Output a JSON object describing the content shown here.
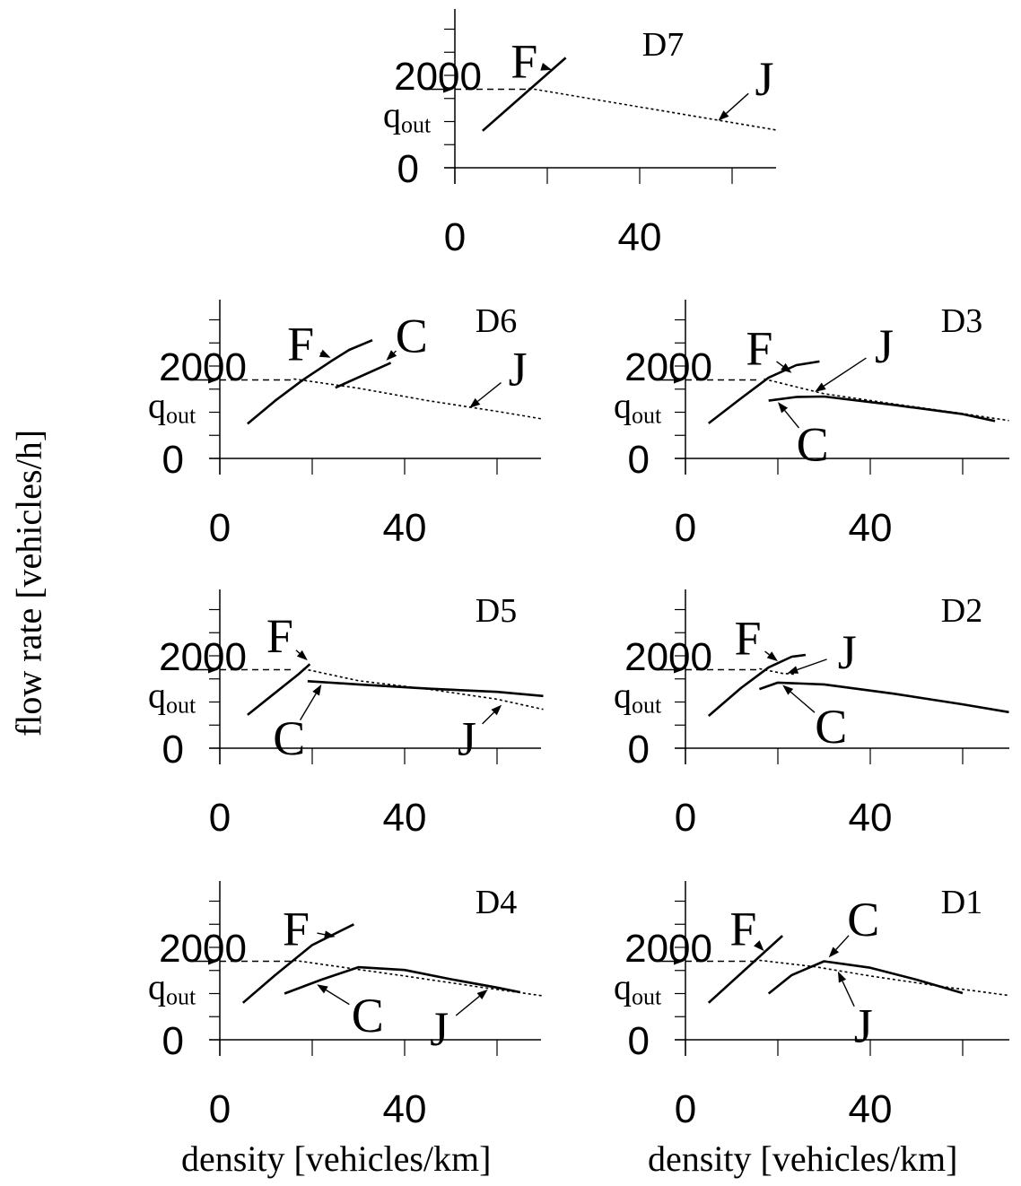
{
  "figure": {
    "ylabel": "flow rate [vehicles/h]",
    "xlabels": [
      "density [vehicles/km]",
      "density [vehicles/km]"
    ]
  },
  "chart_data": [
    {
      "type": "line",
      "title": "D7",
      "x_ticks": [
        "0",
        "40"
      ],
      "y_ticks": [
        "0",
        "2000"
      ],
      "xlim": [
        0,
        70
      ],
      "ylim": [
        0,
        3000
      ],
      "qout_label": "q",
      "qout_sub": "out",
      "qout": 1700,
      "series": [
        {
          "id": "F",
          "style": "solid",
          "points": [
            [
              6,
              800
            ],
            [
              24,
              2380
            ]
          ]
        },
        {
          "id": "J",
          "style": "dotted",
          "points": [
            [
              16,
              1720
            ],
            [
              70,
              810
            ]
          ]
        }
      ],
      "annotations": [
        {
          "label": "F",
          "x": 15,
          "y": 2300,
          "tx": 21,
          "ty": 2120
        },
        {
          "label": "J",
          "x": 67,
          "y": 1920,
          "tx": 57,
          "ty": 1020
        }
      ]
    },
    {
      "type": "line",
      "title": "D6",
      "x_ticks": [
        "0",
        "40"
      ],
      "y_ticks": [
        "0",
        "2000"
      ],
      "xlim": [
        0,
        70
      ],
      "ylim": [
        0,
        3000
      ],
      "qout_label": "q",
      "qout_sub": "out",
      "qout": 1700,
      "series": [
        {
          "id": "F",
          "style": "solid",
          "points": [
            [
              6,
              750
            ],
            [
              12,
              1250
            ],
            [
              18,
              1700
            ],
            [
              24,
              2100
            ],
            [
              28,
              2350
            ],
            [
              33,
              2560
            ]
          ]
        },
        {
          "id": "C",
          "style": "solid",
          "points": [
            [
              25,
              1530
            ],
            [
              37,
              2070
            ]
          ]
        },
        {
          "id": "J",
          "style": "dotted",
          "points": [
            [
              16,
              1720
            ],
            [
              30,
              1520
            ],
            [
              45,
              1250
            ],
            [
              60,
              1020
            ],
            [
              70,
              850
            ]
          ]
        }
      ],
      "annotations": [
        {
          "label": "F",
          "x": 17.5,
          "y": 2480,
          "tx": 24,
          "ty": 2180
        },
        {
          "label": "C",
          "x": 41.5,
          "y": 2650,
          "tx": 36,
          "ty": 2120
        },
        {
          "label": "J",
          "x": 64.5,
          "y": 1930,
          "tx": 54,
          "ty": 1090
        }
      ]
    },
    {
      "type": "line",
      "title": "D3",
      "x_ticks": [
        "0",
        "40"
      ],
      "y_ticks": [
        "0",
        "2000"
      ],
      "xlim": [
        0,
        70
      ],
      "ylim": [
        0,
        3000
      ],
      "qout_label": "q",
      "qout_sub": "out",
      "qout": 1700,
      "series": [
        {
          "id": "F",
          "style": "solid",
          "points": [
            [
              5,
              760
            ],
            [
              12,
              1300
            ],
            [
              18,
              1750
            ],
            [
              24,
              2020
            ],
            [
              29,
              2100
            ]
          ]
        },
        {
          "id": "C",
          "style": "solid",
          "points": [
            [
              18,
              1250
            ],
            [
              24,
              1330
            ],
            [
              30,
              1340
            ],
            [
              45,
              1160
            ],
            [
              60,
              960
            ],
            [
              67,
              810
            ]
          ]
        },
        {
          "id": "J",
          "style": "dotted",
          "points": [
            [
              17,
              1720
            ],
            [
              30,
              1400
            ],
            [
              45,
              1180
            ],
            [
              60,
              970
            ],
            [
              70,
              820
            ]
          ]
        }
      ],
      "annotations": [
        {
          "label": "F",
          "x": 16,
          "y": 2380,
          "tx": 23,
          "ty": 1850
        },
        {
          "label": "J",
          "x": 43,
          "y": 2430,
          "tx": 28,
          "ty": 1440
        },
        {
          "label": "C",
          "x": 27.5,
          "y": 300,
          "tx": 20,
          "ty": 1220
        }
      ]
    },
    {
      "type": "line",
      "title": "D5",
      "x_ticks": [
        "0",
        "40"
      ],
      "y_ticks": [
        "0",
        "2000"
      ],
      "xlim": [
        0,
        70
      ],
      "ylim": [
        0,
        3000
      ],
      "qout_label": "q",
      "qout_sub": "out",
      "qout": 1700,
      "series": [
        {
          "id": "F",
          "style": "solid",
          "points": [
            [
              6,
              720
            ],
            [
              12,
              1200
            ],
            [
              17,
              1600
            ],
            [
              19.5,
              1820
            ]
          ]
        },
        {
          "id": "C",
          "style": "solid",
          "points": [
            [
              19,
              1450
            ],
            [
              30,
              1380
            ],
            [
              45,
              1290
            ],
            [
              60,
              1220
            ],
            [
              70,
              1130
            ]
          ]
        },
        {
          "id": "J",
          "style": "dotted",
          "points": [
            [
              18,
              1720
            ],
            [
              30,
              1460
            ],
            [
              45,
              1280
            ],
            [
              60,
              1060
            ],
            [
              70,
              840
            ]
          ]
        }
      ],
      "annotations": [
        {
          "label": "F",
          "x": 13,
          "y": 2430,
          "tx": 19,
          "ty": 1900
        },
        {
          "label": "C",
          "x": 15,
          "y": 210,
          "tx": 22,
          "ty": 1380
        },
        {
          "label": "J",
          "x": 53.5,
          "y": 200,
          "tx": 61,
          "ty": 940
        }
      ]
    },
    {
      "type": "line",
      "title": "D2",
      "x_ticks": [
        "0",
        "40"
      ],
      "y_ticks": [
        "0",
        "2000"
      ],
      "xlim": [
        0,
        70
      ],
      "ylim": [
        0,
        3000
      ],
      "qout_label": "q",
      "qout_sub": "out",
      "qout": 1700,
      "series": [
        {
          "id": "F",
          "style": "solid",
          "points": [
            [
              5,
              700
            ],
            [
              12,
              1300
            ],
            [
              18,
              1750
            ],
            [
              23,
              1980
            ],
            [
              26,
              2020
            ]
          ]
        },
        {
          "id": "C",
          "style": "solid",
          "points": [
            [
              16,
              1280
            ],
            [
              20,
              1420
            ],
            [
              30,
              1380
            ],
            [
              45,
              1180
            ],
            [
              60,
              950
            ],
            [
              70,
              780
            ]
          ]
        },
        {
          "id": "J",
          "style": "dotted",
          "points": [
            [
              16,
              1720
            ],
            [
              21,
              1620
            ],
            [
              24,
              1600
            ]
          ]
        }
      ],
      "annotations": [
        {
          "label": "F",
          "x": 13.5,
          "y": 2380,
          "tx": 20,
          "ty": 1880
        },
        {
          "label": "J",
          "x": 35,
          "y": 2080,
          "tx": 22,
          "ty": 1620
        },
        {
          "label": "C",
          "x": 31.5,
          "y": 470,
          "tx": 21,
          "ty": 1370
        }
      ]
    },
    {
      "type": "line",
      "title": "D4",
      "x_ticks": [
        "0",
        "40"
      ],
      "y_ticks": [
        "0",
        "2000"
      ],
      "xlim": [
        0,
        70
      ],
      "ylim": [
        0,
        3000
      ],
      "qout_label": "q",
      "qout_sub": "out",
      "qout": 1700,
      "series": [
        {
          "id": "F",
          "style": "solid",
          "points": [
            [
              5,
              800
            ],
            [
              12,
              1400
            ],
            [
              20,
              2050
            ],
            [
              29,
              2500
            ]
          ]
        },
        {
          "id": "C",
          "style": "solid",
          "points": [
            [
              14,
              1000
            ],
            [
              22,
              1300
            ],
            [
              30,
              1570
            ],
            [
              40,
              1510
            ],
            [
              50,
              1310
            ],
            [
              60,
              1130
            ],
            [
              65,
              1030
            ]
          ]
        },
        {
          "id": "J",
          "style": "dotted",
          "points": [
            [
              16,
              1720
            ],
            [
              28,
              1550
            ],
            [
              40,
              1380
            ],
            [
              55,
              1160
            ],
            [
              70,
              950
            ]
          ]
        }
      ],
      "annotations": [
        {
          "label": "F",
          "x": 16.5,
          "y": 2400,
          "tx": 25,
          "ty": 2230
        },
        {
          "label": "C",
          "x": 32,
          "y": 520,
          "tx": 21,
          "ty": 1200
        },
        {
          "label": "J",
          "x": 47.5,
          "y": 230,
          "tx": 58,
          "ty": 1090
        }
      ]
    },
    {
      "type": "line",
      "title": "D1",
      "x_ticks": [
        "0",
        "40"
      ],
      "y_ticks": [
        "0",
        "2000"
      ],
      "xlim": [
        0,
        70
      ],
      "ylim": [
        0,
        3000
      ],
      "qout_label": "q",
      "qout_sub": "out",
      "qout": 1700,
      "series": [
        {
          "id": "F",
          "style": "solid",
          "points": [
            [
              5,
              800
            ],
            [
              21,
              2250
            ]
          ]
        },
        {
          "id": "C",
          "style": "solid",
          "points": [
            [
              18,
              1000
            ],
            [
              23,
              1400
            ],
            [
              30,
              1700
            ],
            [
              40,
              1560
            ],
            [
              50,
              1300
            ],
            [
              60,
              1010
            ]
          ]
        },
        {
          "id": "J",
          "style": "dotted",
          "points": [
            [
              16,
              1720
            ],
            [
              28,
              1580
            ],
            [
              40,
              1380
            ],
            [
              55,
              1160
            ],
            [
              70,
              960
            ]
          ]
        }
      ],
      "annotations": [
        {
          "label": "F",
          "x": 12.5,
          "y": 2400,
          "tx": 17,
          "ty": 1920
        },
        {
          "label": "C",
          "x": 38.5,
          "y": 2600,
          "tx": 31,
          "ty": 1780
        },
        {
          "label": "J",
          "x": 38.5,
          "y": 300,
          "tx": 33,
          "ty": 1480
        }
      ]
    }
  ]
}
